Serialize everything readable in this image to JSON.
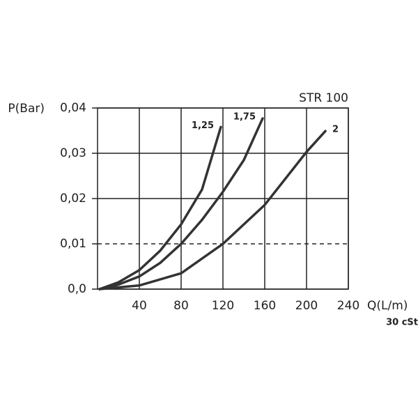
{
  "chart_data": {
    "type": "line",
    "title": "STR 100",
    "subtitle": "30 cSt",
    "y_label": "P(Bar)",
    "x_label": "Q(L/m)",
    "xlim": [
      0,
      240
    ],
    "xticks": [
      40,
      80,
      120,
      160,
      200,
      240
    ],
    "ylim": [
      0,
      0.04
    ],
    "yticks": [
      {
        "value": 0,
        "label": "0,0"
      },
      {
        "value": 0.01,
        "label": "0,01"
      },
      {
        "value": 0.02,
        "label": "0,02"
      },
      {
        "value": 0.03,
        "label": "0,03"
      },
      {
        "value": 0.04,
        "label": "0,04"
      }
    ],
    "ygrid_dashed": [
      false,
      true,
      false,
      false,
      false
    ],
    "grid": true,
    "series": [
      {
        "name": "1,25",
        "color": "#333333",
        "x": [
          2,
          20,
          40,
          60,
          80,
          100,
          118
        ],
        "values": [
          0,
          0.0015,
          0.0042,
          0.0085,
          0.0143,
          0.022,
          0.0358
        ]
      },
      {
        "name": "1,75",
        "color": "#333333",
        "x": [
          2,
          20,
          40,
          60,
          80,
          100,
          120,
          140,
          158
        ],
        "values": [
          0,
          0.001,
          0.0028,
          0.0058,
          0.01,
          0.0153,
          0.0215,
          0.0285,
          0.0377
        ]
      },
      {
        "name": "2",
        "color": "#333333",
        "x": [
          2,
          40,
          80,
          120,
          160,
          200,
          218
        ],
        "values": [
          0,
          0.0008,
          0.0035,
          0.01,
          0.0186,
          0.0303,
          0.0349
        ]
      }
    ]
  }
}
